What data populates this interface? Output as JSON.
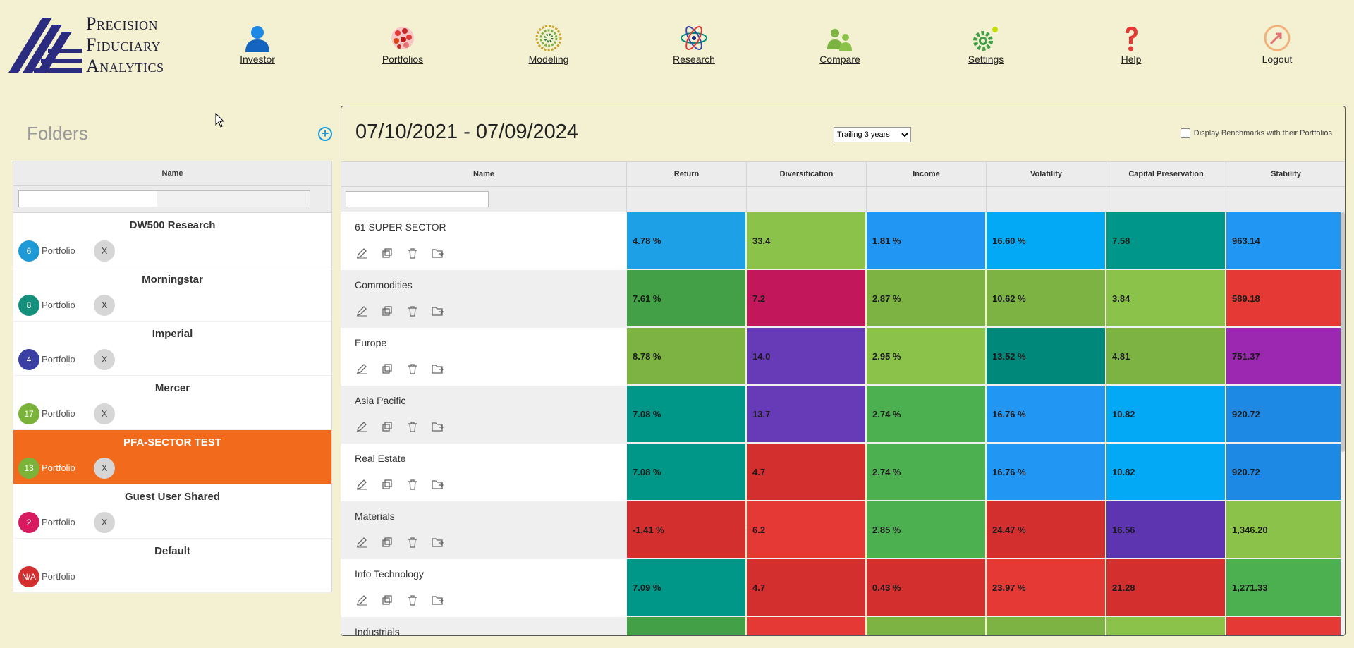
{
  "brand": {
    "line1": "Precision",
    "line2": "Fiduciary",
    "line3": "Analytics",
    "logo_icon": "triangle-logo-icon",
    "colors": {
      "primary": "#2b2c7f"
    }
  },
  "nav": [
    {
      "label": "Investor",
      "icon": "investor-icon"
    },
    {
      "label": "Portfolios",
      "icon": "portfolios-icon"
    },
    {
      "label": "Modeling",
      "icon": "modeling-icon"
    },
    {
      "label": "Research",
      "icon": "research-icon"
    },
    {
      "label": "Compare",
      "icon": "compare-icon"
    },
    {
      "label": "Settings",
      "icon": "settings-icon"
    },
    {
      "label": "Help",
      "icon": "help-icon"
    },
    {
      "label": "Logout",
      "icon": "logout-icon"
    }
  ],
  "folders": {
    "title": "Folders",
    "add_icon": "plus-circle-icon",
    "column_header": "Name",
    "filter_placeholder": "",
    "items": [
      {
        "name": "DW500 Research",
        "count": "6",
        "count_color": "#1e9ad6",
        "label": "Portfolio",
        "remove": "X"
      },
      {
        "name": "Morningstar",
        "count": "8",
        "count_color": "#14907c",
        "label": "Portfolio",
        "remove": "X"
      },
      {
        "name": "Imperial",
        "count": "4",
        "count_color": "#3a3fa3",
        "label": "Portfolio",
        "remove": "X"
      },
      {
        "name": "Mercer",
        "count": "17",
        "count_color": "#7bb33a",
        "label": "Portfolio",
        "remove": "X"
      },
      {
        "name": "PFA-SECTOR TEST",
        "count": "13",
        "count_color": "#7bb33a",
        "label": "Portfolio",
        "remove": "X",
        "selected": true
      },
      {
        "name": "Guest User Shared",
        "count": "2",
        "count_color": "#d81b60",
        "label": "Portfolio",
        "remove": "X"
      },
      {
        "name": "Default",
        "count": "N/A",
        "count_color": "#d32f2f",
        "label": "Portfolio"
      }
    ]
  },
  "main": {
    "date_range": "07/10/2021 - 07/09/2024",
    "period_selected": "Trailing 3 years",
    "benchmark_label": "Display Benchmarks with their Portfolios",
    "columns": [
      "Name",
      "Return",
      "Diversification",
      "Income",
      "Volatility",
      "Capital Preservation",
      "Stability"
    ],
    "action_icons": [
      "edit-icon",
      "copy-icon",
      "trash-icon",
      "move-folder-icon"
    ],
    "rows": [
      {
        "name": "61 SUPER SECTOR",
        "cells": [
          {
            "v": "4.78 %",
            "c": "#1ea0e6"
          },
          {
            "v": "33.4",
            "c": "#8bc34a"
          },
          {
            "v": "1.81 %",
            "c": "#2196f3"
          },
          {
            "v": "16.60 %",
            "c": "#03a9f4"
          },
          {
            "v": "7.58",
            "c": "#00968a"
          },
          {
            "v": "963.14",
            "c": "#2196f3"
          }
        ]
      },
      {
        "name": "Commodities",
        "cells": [
          {
            "v": "7.61 %",
            "c": "#43a047"
          },
          {
            "v": "7.2",
            "c": "#c2185b"
          },
          {
            "v": "2.87 %",
            "c": "#7cb342"
          },
          {
            "v": "10.62 %",
            "c": "#7cb342"
          },
          {
            "v": "3.84",
            "c": "#8bc34a"
          },
          {
            "v": "589.18",
            "c": "#e53935"
          }
        ]
      },
      {
        "name": "Europe",
        "cells": [
          {
            "v": "8.78 %",
            "c": "#7cb342"
          },
          {
            "v": "14.0",
            "c": "#673ab7"
          },
          {
            "v": "2.95 %",
            "c": "#8bc34a"
          },
          {
            "v": "13.52 %",
            "c": "#00897b"
          },
          {
            "v": "4.81",
            "c": "#7cb342"
          },
          {
            "v": "751.37",
            "c": "#9c27b0"
          }
        ]
      },
      {
        "name": "Asia Pacific",
        "cells": [
          {
            "v": "7.08 %",
            "c": "#009688"
          },
          {
            "v": "13.7",
            "c": "#673ab7"
          },
          {
            "v": "2.74 %",
            "c": "#4caf50"
          },
          {
            "v": "16.76 %",
            "c": "#2196f3"
          },
          {
            "v": "10.82",
            "c": "#03a9f4"
          },
          {
            "v": "920.72",
            "c": "#1e88e5"
          }
        ]
      },
      {
        "name": "Real Estate",
        "cells": [
          {
            "v": "7.08 %",
            "c": "#009688"
          },
          {
            "v": "4.7",
            "c": "#d32f2f"
          },
          {
            "v": "2.74 %",
            "c": "#4caf50"
          },
          {
            "v": "16.76 %",
            "c": "#2196f3"
          },
          {
            "v": "10.82",
            "c": "#03a9f4"
          },
          {
            "v": "920.72",
            "c": "#1e88e5"
          }
        ]
      },
      {
        "name": "Materials",
        "cells": [
          {
            "v": "-1.41 %",
            "c": "#d32f2f"
          },
          {
            "v": "6.2",
            "c": "#e53935"
          },
          {
            "v": "2.85 %",
            "c": "#4caf50"
          },
          {
            "v": "24.47 %",
            "c": "#d32f2f"
          },
          {
            "v": "16.56",
            "c": "#5e35b1"
          },
          {
            "v": "1,346.20",
            "c": "#8bc34a"
          }
        ]
      },
      {
        "name": "Info Technology",
        "cells": [
          {
            "v": "7.09 %",
            "c": "#009688"
          },
          {
            "v": "4.7",
            "c": "#d32f2f"
          },
          {
            "v": "0.43 %",
            "c": "#d32f2f"
          },
          {
            "v": "23.97 %",
            "c": "#e53935"
          },
          {
            "v": "21.28",
            "c": "#d32f2f"
          },
          {
            "v": "1,271.33",
            "c": "#4caf50"
          }
        ]
      },
      {
        "name": "Industrials",
        "cells": [
          {
            "v": "",
            "c": "#43a047"
          },
          {
            "v": "",
            "c": "#e53935"
          },
          {
            "v": "",
            "c": "#7cb342"
          },
          {
            "v": "",
            "c": "#7cb342"
          },
          {
            "v": "",
            "c": "#8bc34a"
          },
          {
            "v": "",
            "c": "#e53935"
          }
        ]
      }
    ]
  }
}
